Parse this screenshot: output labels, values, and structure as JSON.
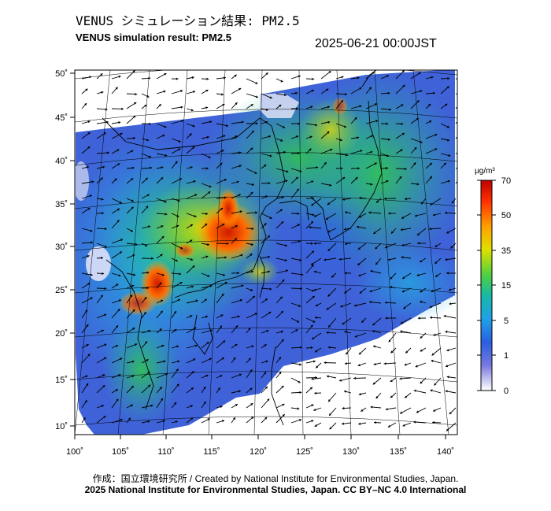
{
  "title_jp": "VENUS シミュレーション結果: PM2.5",
  "title_en": "VENUS simulation result: PM2.5",
  "timestamp": "2025-06-21 00:00JST",
  "map": {
    "lat_ticks": [
      "50˚",
      "45˚",
      "40˚",
      "35˚",
      "30˚",
      "25˚",
      "20˚",
      "15˚",
      "10˚"
    ],
    "lon_ticks": [
      "100˚",
      "105˚",
      "110˚",
      "115˚",
      "120˚",
      "125˚",
      "130˚",
      "135˚",
      "140˚"
    ],
    "lat_range": [
      10,
      50
    ],
    "lon_range": [
      100,
      140
    ]
  },
  "colorbar": {
    "unit": "μg/m³",
    "labels": [
      "70",
      "50",
      "35",
      "15",
      "5",
      "1",
      "0"
    ],
    "colors": [
      "#d01a00",
      "#ff5a00",
      "#ffb000",
      "#d8e000",
      "#55d23a",
      "#1fbf4c",
      "#1ab8a8",
      "#22a8e0",
      "#2a70e0",
      "#3a40d8",
      "#8080e0",
      "#c8c8f0",
      "#ffffff"
    ]
  },
  "credit_line1": "作成：国立環境研究所 / Created by National Institute for Environmental Studies, Japan.",
  "credit_line2": "2025 National Institute for Environmental Studies, Japan. CC BY–NC 4.0 International"
}
